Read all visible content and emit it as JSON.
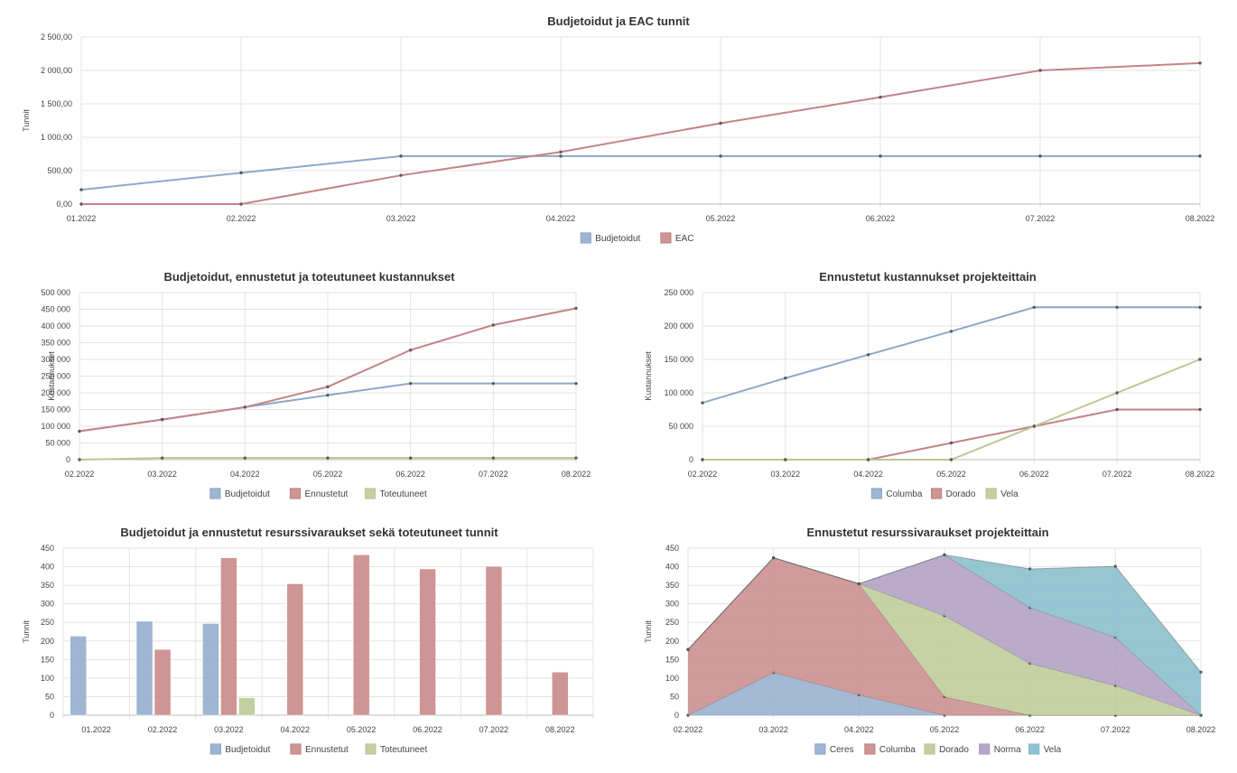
{
  "colors": {
    "blue": "#94aecd",
    "blue_line": "#8ea8c9",
    "red": "#c98a8a",
    "red_line": "#c68383",
    "green": "#bcca96",
    "green_line": "#b9c895",
    "purple": "#ae9cc2",
    "teal": "#85bccb"
  },
  "chart_data": [
    {
      "id": "c1",
      "type": "line",
      "title": "Budjetoidut ja EAC tunnit",
      "ylabel": "Tunnit",
      "xlabel": "",
      "categories": [
        "01.2022",
        "02.2022",
        "03.2022",
        "04.2022",
        "05.2022",
        "06.2022",
        "07.2022",
        "08.2022"
      ],
      "yticks": [
        "0,00",
        "500,00",
        "1 000,00",
        "1 500,00",
        "2 000,00",
        "2 500,00"
      ],
      "ylim": [
        0,
        2500
      ],
      "series": [
        {
          "name": "Budjetoidut",
          "color": "blue",
          "values": [
            215,
            468,
            718,
            718,
            718,
            718,
            718,
            718
          ]
        },
        {
          "name": "EAC",
          "color": "red",
          "values": [
            0,
            0,
            430,
            780,
            1210,
            1600,
            2000,
            2110
          ]
        }
      ]
    },
    {
      "id": "c2",
      "type": "line",
      "title": "Budjetoidut, ennustetut ja toteutuneet kustannukset",
      "ylabel": "Kustannukset",
      "xlabel": "",
      "categories": [
        "02.2022",
        "03.2022",
        "04.2022",
        "05.2022",
        "06.2022",
        "07.2022",
        "08.2022"
      ],
      "yticks": [
        "0",
        "50 000",
        "100 000",
        "150 000",
        "200 000",
        "250 000",
        "300 000",
        "350 000",
        "400 000",
        "450 000",
        "500 000"
      ],
      "ylim": [
        0,
        500000
      ],
      "series": [
        {
          "name": "Budjetoidut",
          "color": "blue",
          "values": [
            85000,
            120000,
            157000,
            193000,
            228000,
            228000,
            228000
          ]
        },
        {
          "name": "Ennustetut",
          "color": "red",
          "values": [
            85000,
            120000,
            157000,
            218000,
            328000,
            403000,
            453000
          ]
        },
        {
          "name": "Toteutuneet",
          "color": "green",
          "values": [
            0,
            5000,
            5000,
            5000,
            5000,
            5000,
            5000
          ]
        }
      ]
    },
    {
      "id": "c3",
      "type": "line",
      "title": "Ennustetut kustannukset projekteittain",
      "ylabel": "Kustannukset",
      "xlabel": "",
      "categories": [
        "02.2022",
        "03.2022",
        "04.2022",
        "05.2022",
        "06.2022",
        "07.2022",
        "08.2022"
      ],
      "yticks": [
        "0",
        "50 000",
        "100 000",
        "150 000",
        "200 000",
        "250 000"
      ],
      "ylim": [
        0,
        250000
      ],
      "series": [
        {
          "name": "Columba",
          "color": "blue",
          "values": [
            85000,
            122000,
            157000,
            192000,
            228000,
            228000,
            228000
          ]
        },
        {
          "name": "Dorado",
          "color": "red",
          "values": [
            0,
            0,
            0,
            25000,
            50000,
            75000,
            75000
          ]
        },
        {
          "name": "Vela",
          "color": "green",
          "values": [
            0,
            0,
            0,
            0,
            50000,
            100000,
            150000
          ]
        }
      ]
    },
    {
      "id": "c4",
      "type": "bar",
      "title": "Budjetoidut ja ennustetut resurssivaraukset sekä toteutuneet tunnit",
      "ylabel": "Tunnit",
      "xlabel": "",
      "categories": [
        "01.2022",
        "02.2022",
        "03.2022",
        "04.2022",
        "05.2022",
        "06.2022",
        "07.2022",
        "08.2022"
      ],
      "yticks": [
        "0",
        "50",
        "100",
        "150",
        "200",
        "250",
        "300",
        "350",
        "400",
        "450"
      ],
      "ylim": [
        0,
        450
      ],
      "series": [
        {
          "name": "Budjetoidut",
          "color": "blue",
          "values": [
            213,
            253,
            247,
            0,
            0,
            0,
            0,
            0
          ]
        },
        {
          "name": "Ennustetut",
          "color": "red",
          "values": [
            0,
            177,
            424,
            354,
            432,
            394,
            401,
            116
          ]
        },
        {
          "name": "Toteutuneet",
          "color": "green",
          "values": [
            0,
            0,
            47,
            0,
            0,
            0,
            0,
            0
          ]
        }
      ]
    },
    {
      "id": "c5",
      "type": "area",
      "stacked": true,
      "title": "Ennustetut resurssivaraukset projekteittain",
      "ylabel": "Tunnit",
      "xlabel": "",
      "categories": [
        "02.2022",
        "03.2022",
        "04.2022",
        "05.2022",
        "06.2022",
        "07.2022",
        "08.2022"
      ],
      "yticks": [
        "0",
        "50",
        "100",
        "150",
        "200",
        "250",
        "300",
        "350",
        "400",
        "450"
      ],
      "ylim": [
        0,
        450
      ],
      "series": [
        {
          "name": "Ceres",
          "color": "blue",
          "values": [
            0,
            115,
            55,
            0,
            0,
            0,
            0
          ]
        },
        {
          "name": "Columba",
          "color": "red",
          "values": [
            177,
            309,
            299,
            50,
            0,
            0,
            0
          ]
        },
        {
          "name": "Dorado",
          "color": "green",
          "values": [
            0,
            0,
            0,
            218,
            140,
            80,
            0
          ]
        },
        {
          "name": "Norma",
          "color": "purple",
          "values": [
            0,
            0,
            0,
            164,
            150,
            130,
            0
          ]
        },
        {
          "name": "Vela",
          "color": "teal",
          "values": [
            0,
            0,
            0,
            0,
            104,
            191,
            116
          ]
        }
      ]
    }
  ]
}
